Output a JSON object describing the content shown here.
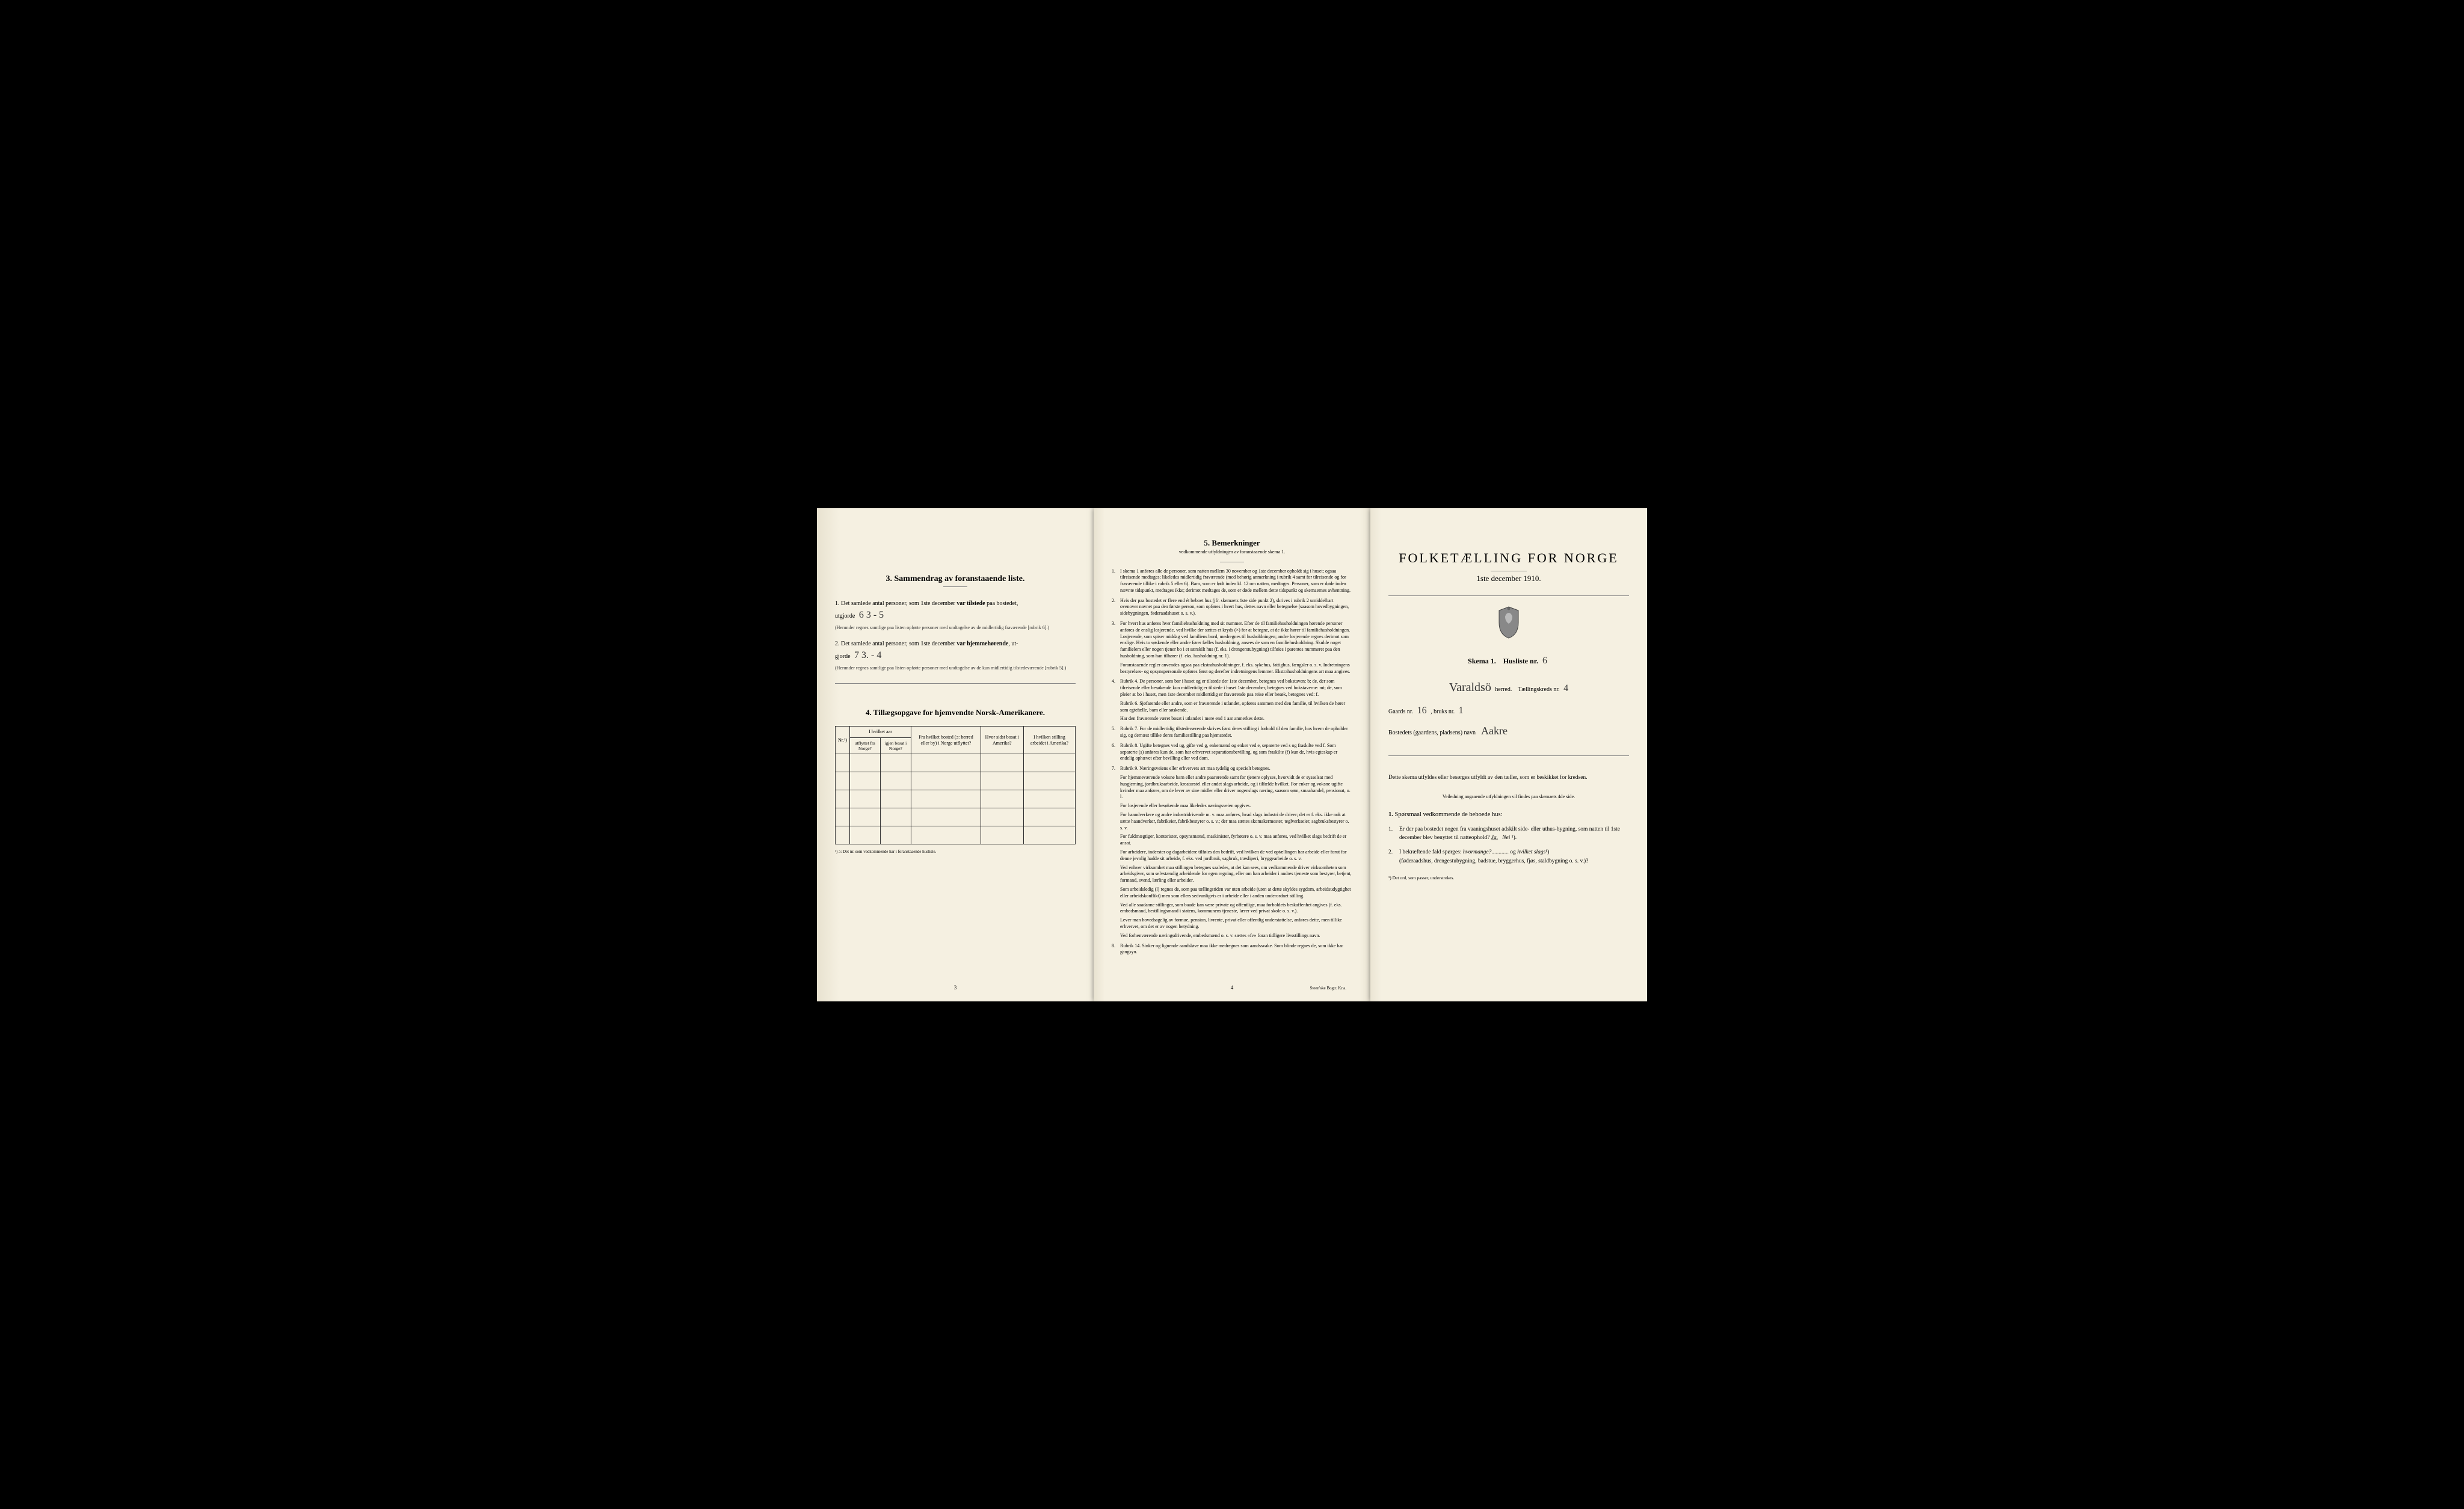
{
  "left": {
    "section3": {
      "title": "3.   Sammendrag av foranstaaende liste.",
      "item1_prefix": "1.  Det samlede antal personer, som 1ste december ",
      "item1_bold": "var tilstede",
      "item1_suffix": " paa bostedet,",
      "item1_line2_prefix": "utgjorde ",
      "item1_handwritten": "6   3 - 5",
      "item1_note": "(Herunder regnes samtlige paa listen opførte personer med undtagelse av de midlertidig fraværende [rubrik 6].)",
      "item2_prefix": "2.  Det samlede antal personer, som 1ste december ",
      "item2_bold": "var hjemmehørende",
      "item2_suffix": ", ut-",
      "item2_line2_prefix": "gjorde ",
      "item2_handwritten": "7   3. - 4",
      "item2_note": "(Herunder regnes samtlige paa listen opførte personer med undtagelse av de kun midlertidig tilstedeværende [rubrik 5].)"
    },
    "section4": {
      "title": "4.  Tillægsopgave for hjemvendte Norsk-Amerikanere.",
      "headers": {
        "col1": "Nr.¹)",
        "col2_top": "I hvilket aar",
        "col2a": "utflyttet fra Norge?",
        "col2b": "igjen bosat i Norge?",
        "col3": "Fra hvilket bosted (ɔ: herred eller by) i Norge utflyttet?",
        "col4": "Hvor sidst bosat i Amerika?",
        "col5": "I hvilken stilling arbeidet i Amerika?"
      },
      "footnote": "¹) ɔ: Det nr. som vedkommende har i foranstaaende husliste."
    },
    "page_num": "3"
  },
  "middle": {
    "title": "5.   Bemerkninger",
    "subtitle": "vedkommende utfyldningen av foranstaaende skema 1.",
    "items": [
      {
        "n": "1.",
        "text": "I skema 1 anføres alle de personer, som natten mellem 30 november og 1ste december opholdt sig i huset; ogsaa tilreisende medtages; likeledes midlertidig fraværende (med behørig anmerkning i rubrik 4 samt for tilreisende og for fraværende tillike i rubrik 5 eller 6). Barn, som er født inden kl. 12 om natten, medtages. Personer, som er døde inden nævnte tidspunkt, medtages ikke; derimot medtages de, som er døde mellem dette tidspunkt og skemaernes avhentning."
      },
      {
        "n": "2.",
        "text": "Hvis der paa bostedet er flere end ét beboet hus (jfr. skemaets 1ste side punkt 2), skrives i rubrik 2 umiddelbart ovenover navnet paa den første person, som opføres i hvert hus, dettes navn eller betegnelse (saasom hovedbygningen, sidebygningen, føderaadshuset o. s. v.)."
      },
      {
        "n": "3.",
        "text": "For hvert hus anføres hver familiehusholdning med sit nummer. Efter de til familiehusholdningen hørende personer anføres de enslig losjerende, ved hvilke der sættes et kryds (×) for at betegne, at de ikke hører til familiehusholdningen. Losjerende, som spiser middag ved familiens bord, medregnes til husholdningen; andre losjerende regnes derimot som enslige. Hvis to søskende eller andre fører fælles husholdning, ansees de som en familiehusholdning. Skulde noget familielem eller nogen tjener bo i et særskilt hus (f. eks. i drengerstubygning) tilføies i parentes nummeret paa den husholdning, som han tilhører (f. eks. husholdning nr. 1).",
        "extra": [
          "Foranstaaende regler anvendes ogsaa paa ekstrahusholdninger, f. eks. sykehus, fattighus, fængsler o. s. v. Indretningens bestyrelses- og opsynspersonale opføres først og derefter indretningens lemmer. Ekstrahusholdningens art maa angives."
        ]
      },
      {
        "n": "4.",
        "text": "Rubrik 4. De personer, som bor i huset og er tilstede der 1ste december, betegnes ved bokstaven: b; de, der som tilreisende eller besøkende kun midlertidig er tilstede i huset 1ste december, betegnes ved bokstaverne: mt; de, som pleier at bo i huset, men 1ste december midlertidig er fraværende paa reise eller besøk, betegnes ved: f.",
        "extra": [
          "Rubrik 6. Sjøfarende eller andre, som er fraværende i utlandet, opføres sammen med den familie, til hvilken de hører som egtefælle, barn eller søskende.",
          "Har den fraværende været bosat i utlandet i mere end 1 aar anmerkes dette."
        ]
      },
      {
        "n": "5.",
        "text": "Rubrik 7. For de midlertidig tilstedeværende skrives først deres stilling i forhold til den familie, hos hvem de opholder sig, og dernæst tillike deres familiestilling paa hjemstedet."
      },
      {
        "n": "6.",
        "text": "Rubrik 8. Ugifte betegnes ved ug, gifte ved g, enkemænd og enker ved e, separerte ved s og fraskilte ved f. Som separerte (s) anføres kun de, som har erhvervet separationsbevilling, og som fraskilte (f) kun de, hvis egteskap er endelig ophævet efter bevilling eller ved dom."
      },
      {
        "n": "7.",
        "text": "Rubrik 9. Næringsveiens eller erhvervets art maa tydelig og specielt betegnes.",
        "extra": [
          "For hjemmeværende voksne barn eller andre paarørende samt for tjenere oplyses, hvorvidt de er sysselsat med husgjerning, jordbruksarbeide, kreaturstel eller andet slags arbeide, og i tilfælde hvilket. For enker og voksne ugifte kvinder maa anføres, om de lever av sine midler eller driver nogenslags næring, saasom søm, smaahandel, pensionat, o. l.",
          "For losjerende eller besøkende maa likeledes næringsveien opgives.",
          "For haandverkere og andre industridrivende m. v. maa anføres, hvad slags industri de driver; det er f. eks. ikke nok at sætte haandverker, fabrikeier, fabrikbestyrer o. s. v.; der maa sættes skomakermester, teglverkseier, sagbruksbestyrer o. s. v.",
          "For fuldmægtiger, kontorister, opsynsmænd, maskinister, fyrbøtere o. s. v. maa anføres, ved hvilket slags bedrift de er ansat.",
          "For arbeidere, inderster og dagarbeidere tilføies den bedrift, ved hvilken de ved optællingen har arbeide eller forut for denne jevnlig hadde sit arbeide, f. eks. ved jordbruk, sagbruk, træsliperi, bryggearbeide o. s. v.",
          "Ved enhver virksomhet maa stillingen betegnes saaledes, at det kan sees, om vedkommende driver virksomheten som arbeidsgiver, som selvstændig arbeidende for egen regning, eller om han arbeider i andres tjeneste som bestyrer, betjent, formand, svend, lærling eller arbeider.",
          "Som arbeidsledig (l) regnes de, som paa tællingstiden var uten arbeide (uten at dette skyldes sygdom, arbeidsudygtighet eller arbeidskonflikt) men som ellers sedvanligvis er i arbeide eller i anden underordnet stilling.",
          "Ved alle saadanne stillinger, som baade kan være private og offentlige, maa forholdets beskaffenhet angives (f. eks. embedsmand, bestillingsmand i statens, kommunens tjeneste, lærer ved privat skole o. s. v.).",
          "Lever man hovedsagelig av formue, pension, livrente, privat eller offentlig understøttelse, anføres dette, men tillike erhvervet, om det er av nogen betydning.",
          "Ved forhenværende næringsdrivende, embedsmænd o. s. v. sættes «fv» foran tidligere livsstillings navn."
        ]
      },
      {
        "n": "8.",
        "text": "Rubrik 14. Sinker og lignende aandsløve maa ikke medregnes som aandssvake. Som blinde regnes de, som ikke har gangsyn."
      }
    ],
    "page_num": "4",
    "printer": "Steen'ske Bogtr.  Kr.a."
  },
  "right": {
    "main_title": "FOLKETÆLLING FOR NORGE",
    "main_date": "1ste december 1910.",
    "skema_label": "Skema 1.",
    "husliste_label": "Husliste nr.",
    "husliste_value": "6",
    "herred_value": "Varaldsö",
    "herred_label": "herred.",
    "kreds_label": "Tællingskreds nr.",
    "kreds_value": "4",
    "gaard_label_a": "Gaards nr.",
    "gaard_value_a": "16",
    "gaard_label_b": ", bruks nr.",
    "gaard_value_b": "1",
    "bosted_label": "Bostedets (gaardens, pladsens) navn",
    "bosted_value": "Aakre",
    "instruction": "Dette skema utfyldes eller besørges utfyldt av den tæller, som er beskikket for kredsen.",
    "instruction_sub": "Veiledning angaaende utfyldningen vil findes paa skemaets 4de side.",
    "q_header_num": "1.",
    "q_header_text": "Spørsmaal vedkommende de beboede hus:",
    "q1": {
      "n": "1.",
      "text_a": "Er der paa bostedet nogen fra vaaningshuset adskilt side- eller uthus-bygning, som natten til 1ste december blev benyttet til natteophold?   ",
      "ja": "Ja.",
      "nei": "Nei",
      "sup": " ¹)."
    },
    "q2": {
      "n": "2.",
      "text_a": "I bekræftende fald spørges: ",
      "hvormange": "hvormange?",
      "dots": "............",
      "text_b": "og ",
      "hvilket": "hvilket slags",
      "sup": "¹)",
      "text_c": "(føderaadshus, drengestubygning, badstue, bryggerhus, fjøs, staldbygning o. s. v.)?"
    },
    "footnote": "¹) Det ord, som passer, understrekes."
  }
}
